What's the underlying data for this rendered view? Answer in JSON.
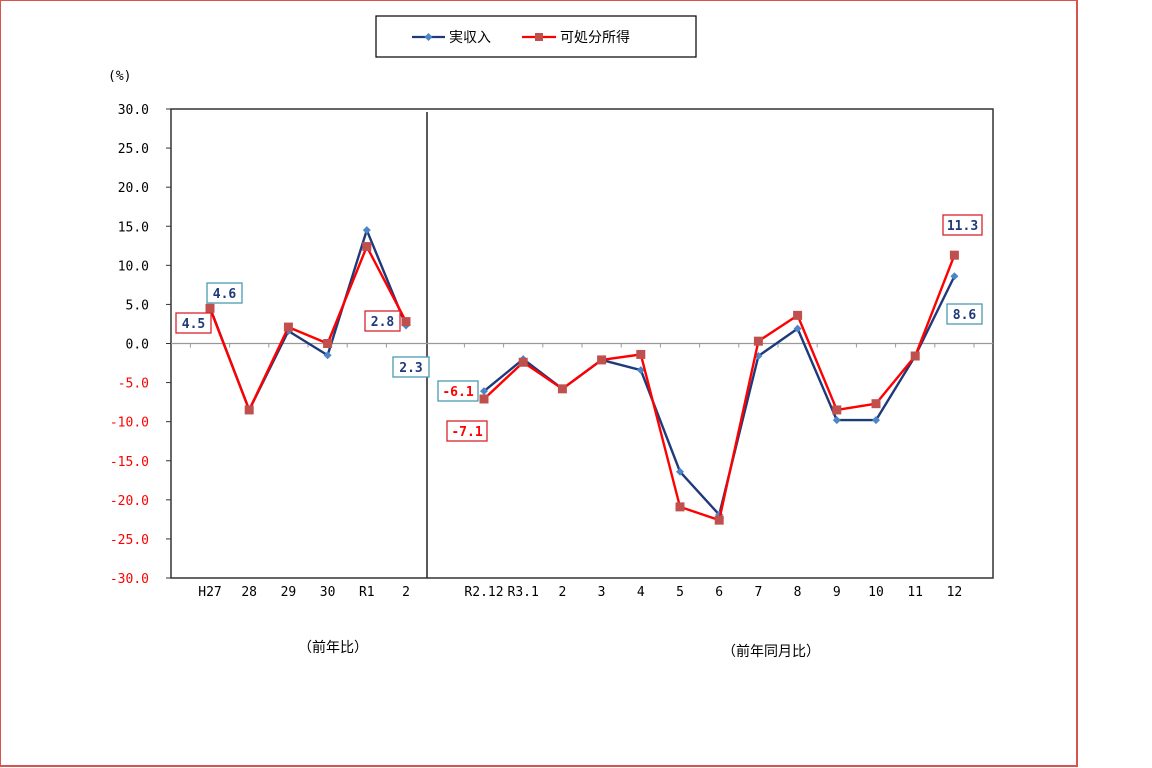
{
  "chart_data": {
    "type": "line",
    "title": "",
    "ylabel": "(%)",
    "ylim": [
      -30,
      30
    ],
    "yticks": [
      "30.0",
      "25.0",
      "20.0",
      "15.0",
      "10.0",
      "5.0",
      "0.0",
      "-5.0",
      "-10.0",
      "-15.0",
      "-20.0",
      "-25.0",
      "-30.0"
    ],
    "grid": false,
    "legend_position": "top",
    "legend": [
      {
        "name": "実収入",
        "color": "#1f3a7a",
        "marker": "diamond",
        "marker_color": "#4a86c8"
      },
      {
        "name": "可処分所得",
        "color": "#ff0000",
        "marker": "square",
        "marker_color": "#c0504d"
      }
    ],
    "panels": [
      {
        "xlabel": "（前年比）",
        "categories": [
          "H27",
          "28",
          "29",
          "30",
          "R1",
          "2"
        ],
        "series": [
          {
            "name": "実収入",
            "values": [
              4.6,
              -8.5,
              1.6,
              -1.5,
              14.5,
              2.3
            ]
          },
          {
            "name": "可処分所得",
            "values": [
              4.5,
              -8.5,
              2.1,
              0.0,
              12.4,
              2.8
            ]
          }
        ]
      },
      {
        "xlabel": "（前年同月比）",
        "categories": [
          "R2.12",
          "R3.1",
          "2",
          "3",
          "4",
          "5",
          "6",
          "7",
          "8",
          "9",
          "10",
          "11",
          "12"
        ],
        "series": [
          {
            "name": "実収入",
            "values": [
              -6.1,
              -2.0,
              -5.8,
              -2.1,
              -3.4,
              -16.4,
              -21.9,
              -1.6,
              1.9,
              -9.8,
              -9.8,
              -1.6,
              8.6
            ]
          },
          {
            "name": "可処分所得",
            "values": [
              -7.1,
              -2.4,
              -5.8,
              -2.1,
              -1.4,
              -20.9,
              -22.6,
              0.3,
              3.6,
              -8.5,
              -7.7,
              -1.6,
              11.3
            ]
          }
        ]
      }
    ],
    "annotations": [
      {
        "text": "4.6",
        "series": "実収入",
        "category": "H27",
        "box_color": "#4a9bb0"
      },
      {
        "text": "4.5",
        "series": "可処分所得",
        "category": "H27",
        "box_color": "#d9232d"
      },
      {
        "text": "2.8",
        "series": "可処分所得",
        "category": "2",
        "box_color": "#d9232d"
      },
      {
        "text": "2.3",
        "series": "実収入",
        "category": "2",
        "box_color": "#4a9bb0"
      },
      {
        "text": "-6.1",
        "series": "実収入",
        "category": "R2.12",
        "box_color": "#4a9bb0"
      },
      {
        "text": "-7.1",
        "series": "可処分所得",
        "category": "R2.12",
        "box_color": "#d9232d"
      },
      {
        "text": "11.3",
        "series": "可処分所得",
        "category": "12",
        "box_color": "#d9232d"
      },
      {
        "text": "8.6",
        "series": "実収入",
        "category": "12",
        "box_color": "#4a9bb0"
      }
    ]
  },
  "colors": {
    "frame": "#d9534f",
    "axis": "#000000",
    "zero_line": "#999999",
    "positive_tick": "#000000",
    "negative_tick": "#ff0000",
    "label_text_blue": "#1f3a7a",
    "label_text_red": "#ff0000"
  }
}
